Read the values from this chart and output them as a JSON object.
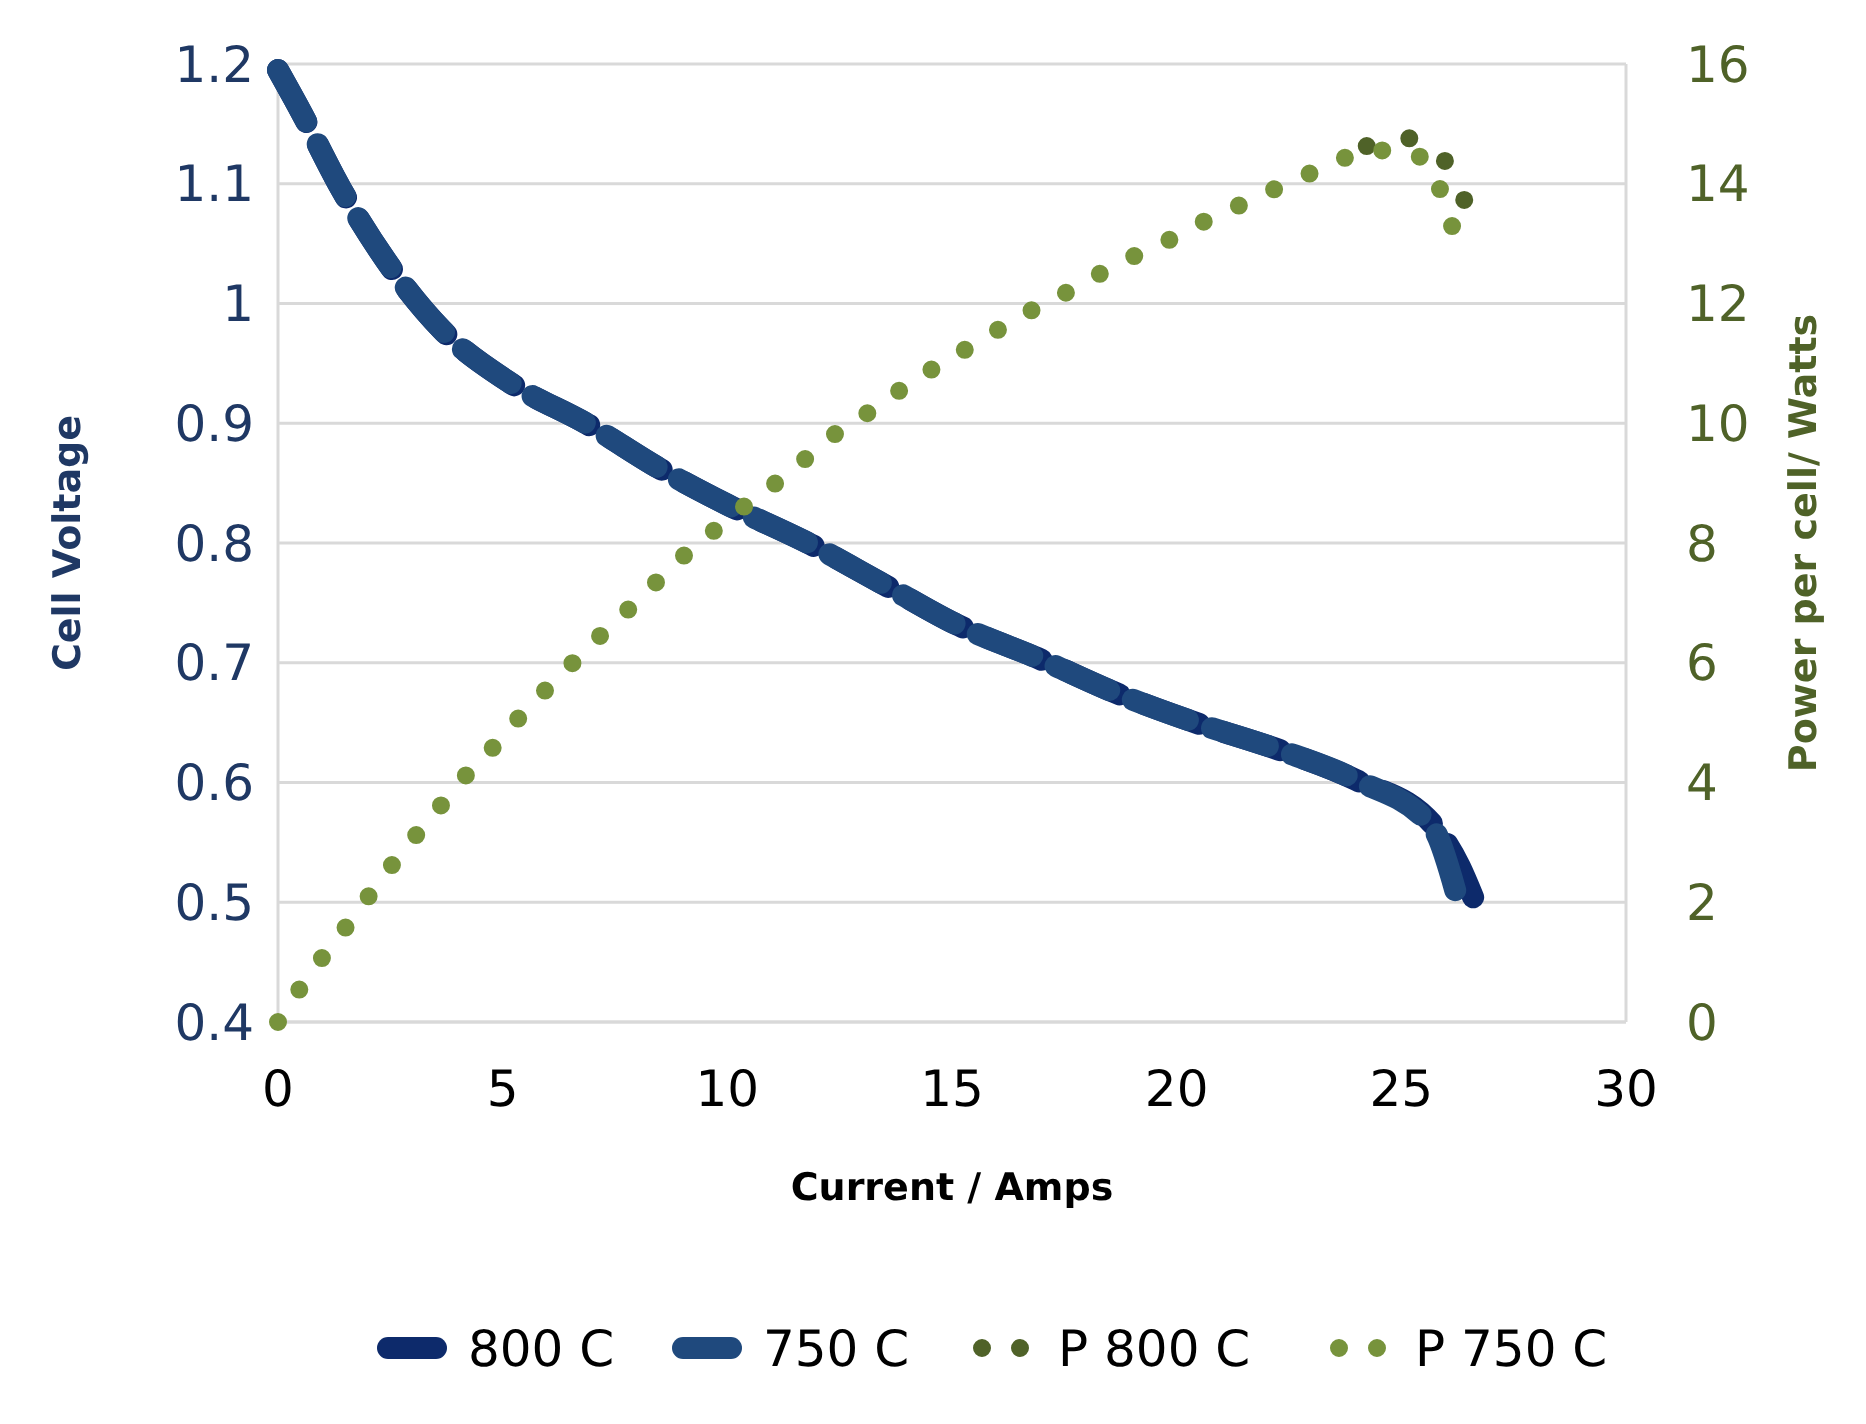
{
  "chart_data": {
    "type": "line",
    "xlabel": "Current / Amps",
    "ylabel": "Cell Voltage",
    "y2label": "Power per cell/ Watts",
    "xlim": [
      0,
      30
    ],
    "xticks": [
      0,
      5,
      10,
      15,
      20,
      25,
      30
    ],
    "ylim": [
      0.4,
      1.2
    ],
    "yticks": [
      0.4,
      0.5,
      0.6,
      0.7,
      0.8,
      0.9,
      1,
      1.1,
      1.2
    ],
    "y2lim": [
      0,
      16
    ],
    "y2ticks": [
      0,
      2,
      4,
      6,
      8,
      10,
      12,
      14,
      16
    ],
    "grid": "y",
    "legend": "bottom",
    "marker": "none",
    "series": [
      {
        "name": "800 C",
        "color": "#0d2a6b",
        "line_style": "dashed",
        "x": [
          0,
          0.5,
          1.4,
          2.4,
          3.65,
          5.2,
          6.9,
          8.5,
          10,
          11.85,
          13.5,
          15.1,
          16.9,
          18.7,
          20.5,
          22.3,
          24,
          25.7,
          26.3,
          26.6
        ],
        "values": [
          1.195,
          1.161,
          1.096,
          1.036,
          0.978,
          0.933,
          0.899,
          0.862,
          0.832,
          0.799,
          0.765,
          0.732,
          0.704,
          0.674,
          0.649,
          0.627,
          0.602,
          0.565,
          0.53,
          0.504
        ]
      },
      {
        "name": "750 C",
        "color": "#1f497d",
        "line_style": "dashed",
        "x": [
          0,
          0.5,
          1.4,
          2.4,
          3.65,
          5.2,
          6.9,
          8.5,
          10,
          11.85,
          13.5,
          15.1,
          16.9,
          18.7,
          20.5,
          22.3,
          24,
          25.7,
          26.2
        ],
        "values": [
          1.195,
          1.161,
          1.096,
          1.036,
          0.978,
          0.933,
          0.899,
          0.862,
          0.832,
          0.799,
          0.765,
          0.732,
          0.704,
          0.674,
          0.649,
          0.627,
          0.602,
          0.562,
          0.51
        ]
      },
      {
        "name": "P 800 C",
        "color": "#4f6228",
        "line_style": "dotted",
        "axis": "y2",
        "x": [
          24.23,
          25.14,
          25.95,
          26.4
        ],
        "values": [
          14.63,
          14.76,
          14.4,
          13.73
        ]
      },
      {
        "name": "P 750 C",
        "color": "#77933c",
        "line_style": "dotted",
        "axis": "y2",
        "x": [
          0,
          0.5,
          1.08,
          1.67,
          2.25,
          2.84,
          3.47,
          4.05,
          4.73,
          5.36,
          6.04,
          6.71,
          7.39,
          8.11,
          8.78,
          9.5,
          10.27,
          11.04,
          11.76,
          12.52,
          13.29,
          14.1,
          14.91,
          15.72,
          16.53,
          17.39,
          18.2,
          19.05,
          19.91,
          20.77,
          21.67,
          22.52,
          23.38,
          24.28,
          25.18,
          25.81,
          26.13
        ],
        "values": [
          0,
          0.57,
          1.17,
          1.74,
          2.34,
          2.91,
          3.47,
          4.01,
          4.54,
          5.08,
          5.61,
          6.11,
          6.61,
          7.11,
          7.62,
          8.08,
          8.55,
          8.98,
          9.42,
          9.89,
          10.25,
          10.69,
          11.06,
          11.42,
          11.79,
          12.12,
          12.46,
          12.79,
          13.09,
          13.43,
          13.73,
          14.03,
          14.3,
          14.56,
          14.53,
          14,
          13.29
        ]
      }
    ]
  }
}
